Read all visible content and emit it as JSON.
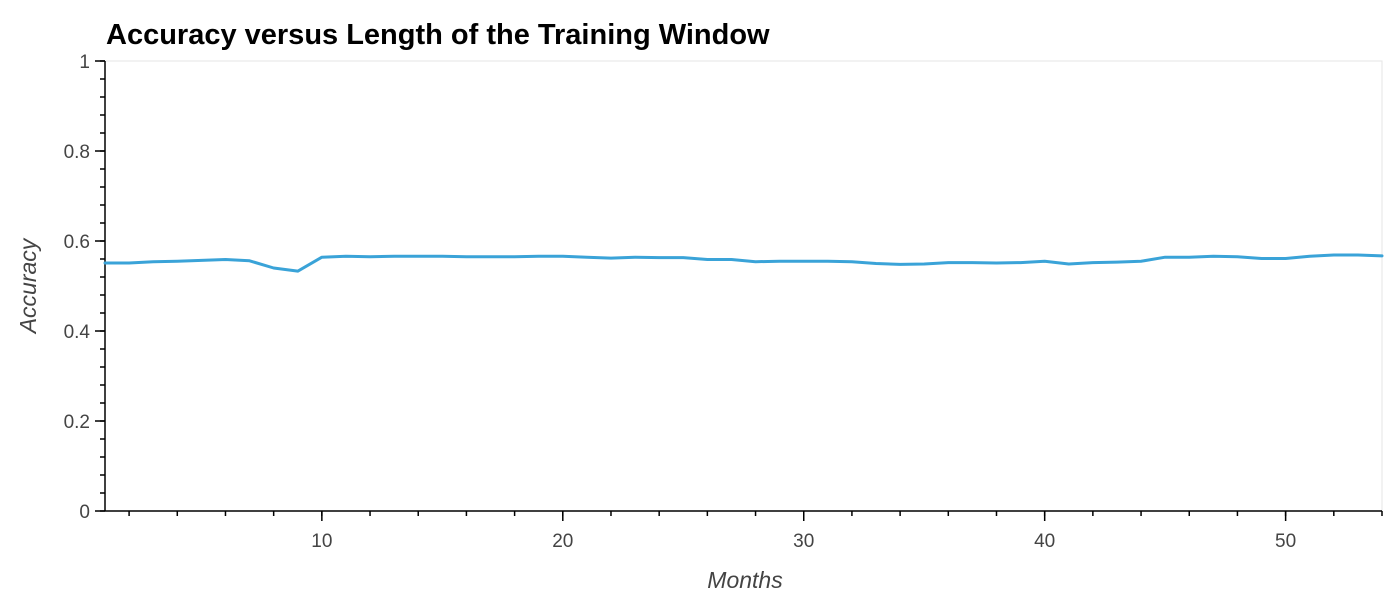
{
  "chart_data": {
    "type": "line",
    "title": "Accuracy versus Length of the Training Window",
    "xlabel": "Months",
    "ylabel": "Accuracy",
    "xlim": [
      1,
      54
    ],
    "ylim": [
      0,
      1
    ],
    "x_ticks": [
      10,
      20,
      30,
      40,
      50
    ],
    "x_tick_labels": [
      "10",
      "20",
      "30",
      "40",
      "50"
    ],
    "x_minor_step": 2,
    "y_ticks": [
      0,
      0.2,
      0.4,
      0.6,
      0.8,
      1
    ],
    "y_tick_labels": [
      "0",
      "0.2",
      "0.4",
      "0.6",
      "0.8",
      "1"
    ],
    "y_minor_step": 0.04,
    "grid": false,
    "legend": "none",
    "colors": {
      "line": "#3aa3d8"
    },
    "series": [
      {
        "x": [
          1,
          2,
          3,
          4,
          5,
          6,
          7,
          8,
          9,
          10,
          11,
          12,
          13,
          14,
          15,
          16,
          17,
          18,
          19,
          20,
          21,
          22,
          23,
          24,
          25,
          26,
          27,
          28,
          29,
          30,
          31,
          32,
          33,
          34,
          35,
          36,
          37,
          38,
          39,
          40,
          41,
          42,
          43,
          44,
          45,
          46,
          47,
          48,
          49,
          50,
          51,
          52,
          53,
          54
        ],
        "values": [
          0.551,
          0.551,
          0.554,
          0.555,
          0.557,
          0.559,
          0.556,
          0.54,
          0.533,
          0.564,
          0.566,
          0.565,
          0.566,
          0.566,
          0.566,
          0.565,
          0.565,
          0.565,
          0.566,
          0.566,
          0.564,
          0.562,
          0.564,
          0.563,
          0.563,
          0.559,
          0.559,
          0.554,
          0.555,
          0.555,
          0.555,
          0.554,
          0.55,
          0.548,
          0.549,
          0.552,
          0.552,
          0.551,
          0.552,
          0.555,
          0.549,
          0.552,
          0.553,
          0.555,
          0.564,
          0.564,
          0.566,
          0.565,
          0.561,
          0.561,
          0.566,
          0.569,
          0.569,
          0.567
        ]
      }
    ]
  }
}
